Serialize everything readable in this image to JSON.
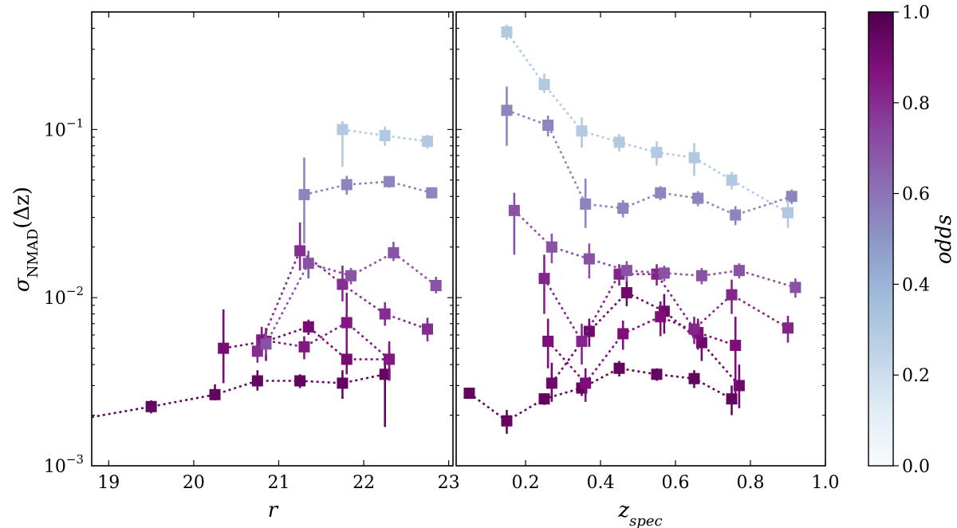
{
  "figure": {
    "left_ylabel": "σNMAD(Δz)",
    "left_ylabel_main": "σ",
    "left_ylabel_sub": "NMAD",
    "left_ylabel_tail": "(Δz)",
    "colorbar_label": "odds"
  },
  "chart_data": [
    {
      "type": "scatter",
      "panel": "left",
      "xlabel": "r",
      "ylabel": "σNMAD(Δz)",
      "xlim": [
        18.8,
        23.05
      ],
      "ylim": [
        0.001,
        0.5
      ],
      "yscale": "log",
      "xticks": [
        19,
        20,
        21,
        22,
        23
      ],
      "xtick_labels": [
        "19",
        "20",
        "21",
        "22",
        "23"
      ],
      "yticks": [
        0.001,
        0.01,
        0.1
      ],
      "ytick_labels": [
        "10−3",
        "10−2",
        "10−1"
      ],
      "ytick_base": "10",
      "ytick_exponents": [
        "−3",
        "−2",
        "−1"
      ],
      "linestyle": "dotted",
      "series": [
        {
          "name": "odds 0.95",
          "odds": 0.95,
          "x": [
            18.8,
            19.5,
            20.25,
            20.75,
            21.25,
            21.75,
            22.25
          ],
          "y": [
            0.00195,
            0.00225,
            0.00265,
            0.0032,
            0.0032,
            0.0031,
            0.0035
          ],
          "err_low": [
            null,
            0.0002,
            0.0002,
            0.0004,
            0.0003,
            0.0006,
            0.0018
          ],
          "err_high": [
            null,
            0.0002,
            0.0004,
            0.0005,
            0.0003,
            0.0006,
            0.0011
          ]
        },
        {
          "name": "odds 0.90",
          "odds": 0.9,
          "x": [
            20.35,
            20.85,
            21.35,
            21.8,
            22.3
          ],
          "y": [
            0.005,
            0.0055,
            0.0067,
            0.0043,
            0.0043
          ],
          "err_low": [
            0.0019,
            0.0013,
            0.0007,
            0.0008,
            0.0009
          ],
          "err_high": [
            0.0035,
            0.0011,
            0.0007,
            0.0008,
            0.0008
          ]
        },
        {
          "name": "odds 0.85",
          "odds": 0.85,
          "x": [
            20.8,
            21.3,
            21.8,
            22.3
          ],
          "y": [
            0.0056,
            0.0051,
            0.0071,
            0.0043
          ],
          "err_low": [
            0.0011,
            0.0008,
            0.0024,
            0.0011
          ],
          "err_high": [
            0.0011,
            0.0008,
            0.0036,
            0.0012
          ]
        },
        {
          "name": "odds 0.80",
          "odds": 0.8,
          "x": [
            20.75,
            21.25,
            21.75,
            22.25,
            22.75
          ],
          "y": [
            0.0048,
            0.019,
            0.012,
            0.008,
            0.0065
          ],
          "err_low": [
            0.0007,
            0.0045,
            0.0025,
            0.0012,
            0.001
          ],
          "err_high": [
            0.0008,
            0.009,
            0.0035,
            0.0014,
            0.0011
          ]
        },
        {
          "name": "odds 0.70",
          "odds": 0.7,
          "x": [
            20.85,
            21.35,
            21.85,
            22.35,
            22.85
          ],
          "y": [
            0.0053,
            0.016,
            0.0135,
            0.0185,
            0.0118
          ],
          "err_low": [
            0.0007,
            0.003,
            0.0015,
            0.002,
            0.0012
          ],
          "err_high": [
            0.0008,
            0.003,
            0.0015,
            0.003,
            0.0015
          ]
        },
        {
          "name": "odds 0.55",
          "odds": 0.55,
          "x": [
            21.3,
            21.8,
            22.3,
            22.8
          ],
          "y": [
            0.041,
            0.047,
            0.049,
            0.042
          ],
          "err_low": [
            0.02,
            0.006,
            0.004,
            0.003
          ],
          "err_high": [
            0.027,
            0.006,
            0.004,
            0.003
          ]
        },
        {
          "name": "odds 0.30",
          "odds": 0.3,
          "x": [
            21.75,
            22.25,
            22.75
          ],
          "y": [
            0.1,
            0.092,
            0.085
          ],
          "err_low": [
            0.04,
            0.012,
            0.008
          ],
          "err_high": [
            0.012,
            0.012,
            0.008
          ]
        }
      ]
    },
    {
      "type": "scatter",
      "panel": "right",
      "xlabel": "zspec",
      "xlabel_main": "z",
      "xlabel_sub": "spec",
      "ylabel": "σNMAD(Δz)",
      "xlim": [
        0.015,
        1.0
      ],
      "ylim": [
        0.001,
        0.5
      ],
      "yscale": "log",
      "xticks": [
        0.2,
        0.4,
        0.6,
        0.8,
        1.0
      ],
      "xtick_labels": [
        "0.2",
        "0.4",
        "0.6",
        "0.8",
        "1.0"
      ],
      "linestyle": "dotted",
      "series": [
        {
          "name": "odds 0.95",
          "odds": 0.95,
          "x": [
            0.05,
            0.15,
            0.25,
            0.35,
            0.45,
            0.55,
            0.65,
            0.75
          ],
          "y": [
            0.0027,
            0.00185,
            0.0025,
            0.0029,
            0.0038,
            0.0035,
            0.0033,
            0.0025
          ],
          "err_low": [
            0.0002,
            0.0003,
            0.0002,
            0.0003,
            0.0004,
            0.0003,
            0.0004,
            0.0005
          ],
          "err_high": [
            0.0002,
            0.0003,
            0.0002,
            0.0003,
            0.0004,
            0.0003,
            0.0004,
            0.0005
          ]
        },
        {
          "name": "odds 0.92",
          "odds": 0.92,
          "x": [
            0.27,
            0.37,
            0.47,
            0.57,
            0.67,
            0.77
          ],
          "y": [
            0.0031,
            0.0063,
            0.0107,
            0.0083,
            0.0054,
            0.003
          ],
          "err_low": [
            0.0007,
            0.0012,
            0.0018,
            0.0022,
            0.0012,
            0.0008
          ],
          "err_high": [
            0.001,
            0.0012,
            0.0022,
            0.0022,
            0.0012,
            0.001
          ]
        },
        {
          "name": "odds 0.88",
          "odds": 0.88,
          "x": [
            0.26,
            0.36,
            0.46,
            0.56,
            0.66,
            0.76
          ],
          "y": [
            0.0055,
            0.0031,
            0.0061,
            0.0077,
            0.0062,
            0.0052
          ],
          "err_low": [
            0.0017,
            0.0007,
            0.0012,
            0.0018,
            0.0013,
            0.0025
          ],
          "err_high": [
            0.002,
            0.0007,
            0.0012,
            0.0018,
            0.0013,
            0.0025
          ]
        },
        {
          "name": "odds 0.82",
          "odds": 0.82,
          "x": [
            0.25,
            0.35,
            0.45,
            0.55,
            0.65,
            0.75,
            0.9
          ],
          "y": [
            0.013,
            0.0055,
            0.0138,
            0.0138,
            0.0065,
            0.0104,
            0.0066
          ],
          "err_low": [
            0.005,
            0.0015,
            0.002,
            0.002,
            0.0012,
            0.0024,
            0.0012
          ],
          "err_high": [
            0.005,
            0.0015,
            0.002,
            0.002,
            0.0012,
            0.0024,
            0.0012
          ]
        },
        {
          "name": "odds 0.70",
          "odds": 0.7,
          "x": [
            0.17,
            0.27,
            0.37,
            0.47,
            0.57,
            0.67,
            0.77,
            0.92
          ],
          "y": [
            0.033,
            0.02,
            0.017,
            0.0145,
            0.014,
            0.0135,
            0.0145,
            0.0115
          ],
          "err_low": [
            0.015,
            0.004,
            0.004,
            0.002,
            0.0015,
            0.0015,
            0.0015,
            0.0015
          ],
          "err_high": [
            0.009,
            0.004,
            0.004,
            0.002,
            0.0015,
            0.0015,
            0.0015,
            0.0015
          ]
        },
        {
          "name": "odds 0.55",
          "odds": 0.55,
          "x": [
            0.15,
            0.26,
            0.36,
            0.46,
            0.56,
            0.66,
            0.76,
            0.91
          ],
          "y": [
            0.13,
            0.106,
            0.036,
            0.034,
            0.042,
            0.039,
            0.031,
            0.04
          ],
          "err_low": [
            0.05,
            0.015,
            0.01,
            0.004,
            0.004,
            0.004,
            0.004,
            0.004
          ],
          "err_high": [
            0.05,
            0.015,
            0.015,
            0.004,
            0.004,
            0.004,
            0.004,
            0.004
          ]
        },
        {
          "name": "odds 0.30",
          "odds": 0.3,
          "x": [
            0.15,
            0.25,
            0.35,
            0.45,
            0.55,
            0.65,
            0.75,
            0.9
          ],
          "y": [
            0.38,
            0.185,
            0.098,
            0.084,
            0.073,
            0.068,
            0.05,
            0.032
          ],
          "err_low": [
            0.04,
            0.02,
            0.02,
            0.01,
            0.012,
            0.015,
            0.006,
            0.006
          ],
          "err_high": [
            0.04,
            0.03,
            0.02,
            0.01,
            0.012,
            0.015,
            0.006,
            0.006
          ]
        }
      ]
    }
  ],
  "colorbar": {
    "label": "odds",
    "vmin": 0.0,
    "vmax": 1.0,
    "ticks": [
      0.0,
      0.2,
      0.4,
      0.6,
      0.8,
      1.0
    ],
    "tick_labels": [
      "0.0",
      "0.2",
      "0.4",
      "0.6",
      "0.8",
      "1.0"
    ],
    "colormap": "BuPu",
    "stops": [
      "#f7fcfd",
      "#e0ecf4",
      "#bfd3e6",
      "#9ebcda",
      "#8c96c6",
      "#8c6bb1",
      "#88419d",
      "#810f7c",
      "#4d004b"
    ]
  }
}
